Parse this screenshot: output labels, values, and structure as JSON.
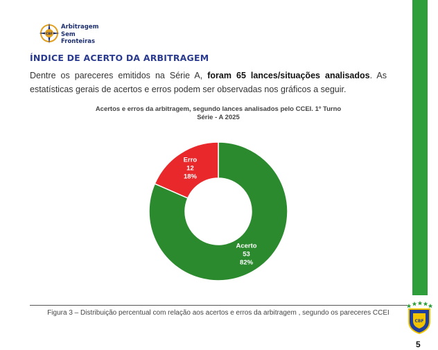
{
  "header": {
    "logo_lines": [
      "Arbitragem",
      "Sem",
      "Fronteiras"
    ],
    "emblem_text": "CBF"
  },
  "section": {
    "title": "ÍNDICE DE ACERTO DA ARBITRAGEM",
    "paragraph_before": "Dentre os pareceres emitidos na Série A, ",
    "paragraph_bold": "foram 65 lances/situações analisados",
    "paragraph_after": ". As estatísticas gerais de acertos e erros podem ser observadas nos gráficos a seguir."
  },
  "chart_data": {
    "type": "pie",
    "subtype": "donut",
    "title": "Acertos e erros da arbitragem, segundo lances analisados pelo CCEI. 1º Turno Série - A 2025",
    "slices": [
      {
        "label": "Acerto",
        "value": 53,
        "percent": "82%",
        "color": "#2b8a2e"
      },
      {
        "label": "Erro",
        "value": 12,
        "percent": "18%",
        "color": "#e8282b"
      }
    ]
  },
  "caption": "Figura 3 – Distribuição percentual com relação aos acertos e erros da arbitragem , segundo os pareceres CCEI",
  "footer": {
    "page_number": "5",
    "badge_text": "CBF"
  },
  "colors": {
    "accent_green": "#2e9e3a",
    "title_blue": "#2a3b8f"
  }
}
